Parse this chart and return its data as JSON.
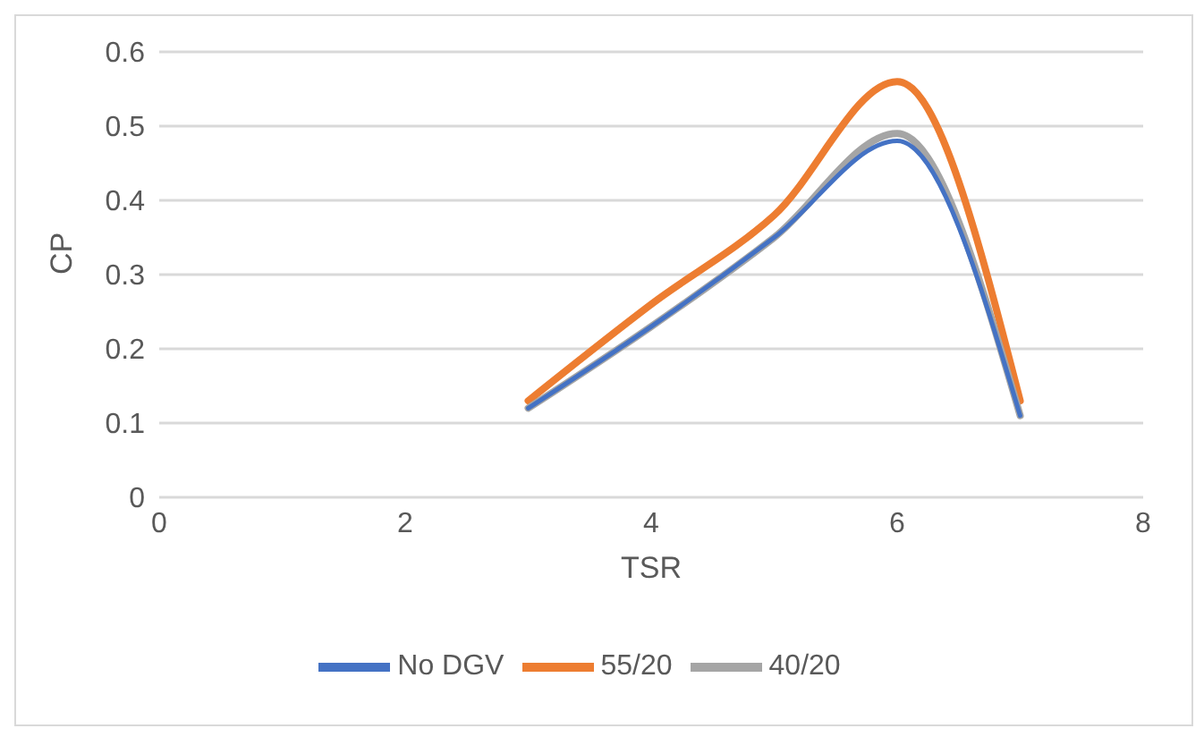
{
  "chart_data": {
    "type": "line",
    "xlabel": "TSR",
    "ylabel": "CP",
    "x": [
      3,
      4,
      5,
      6,
      7
    ],
    "series": [
      {
        "name": "No DGV",
        "color": "#4472c4",
        "values": [
          0.12,
          0.23,
          0.35,
          0.48,
          0.11
        ]
      },
      {
        "name": "55/20",
        "color": "#ed7d31",
        "values": [
          0.13,
          0.26,
          0.38,
          0.56,
          0.13
        ]
      },
      {
        "name": "40/20",
        "color": "#a5a5a5",
        "values": [
          0.12,
          0.23,
          0.35,
          0.49,
          0.11
        ]
      }
    ],
    "xlim": [
      0,
      8
    ],
    "xticks": [
      0,
      2,
      4,
      6,
      8
    ],
    "ylim": [
      0,
      0.6
    ],
    "yticks": [
      0,
      0.1,
      0.2,
      0.3,
      0.4,
      0.5,
      0.6
    ],
    "grid": "y",
    "legend": "bottom",
    "marker": "none",
    "line_style": "solid"
  }
}
